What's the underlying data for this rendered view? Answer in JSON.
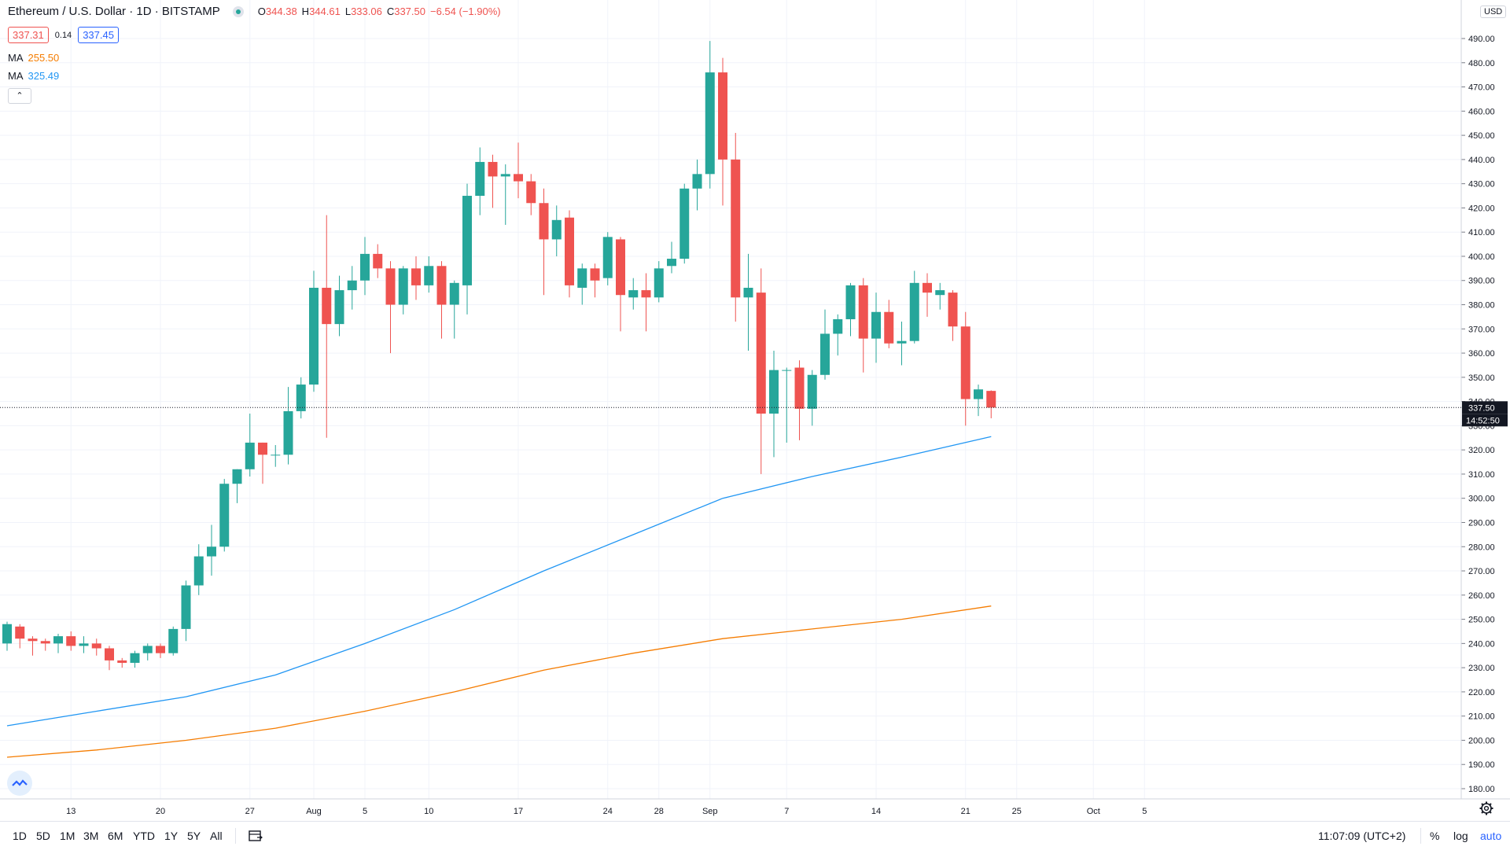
{
  "header": {
    "symbol": "Ethereum / U.S. Dollar · 1D · BITSTAMP",
    "o_label": "O",
    "o_value": "344.38",
    "h_label": "H",
    "h_value": "344.61",
    "l_label": "L",
    "l_value": "333.06",
    "c_label": "C",
    "c_value": "337.50",
    "change": "−6.54 (−1.90%)",
    "bid": "337.31",
    "spread": "0.14",
    "ask": "337.45",
    "ma1_label": "MA",
    "ma1_value": "255.50",
    "ma2_label": "MA",
    "ma2_value": "325.49",
    "collapse_icon": "chevron-up-icon"
  },
  "price_scale": {
    "currency_badge": "USD",
    "last_price_label": "337.50",
    "countdown_label": "14:52:50"
  },
  "bottom_toolbar": {
    "ranges": [
      "1D",
      "5D",
      "1M",
      "3M",
      "6M",
      "YTD",
      "1Y",
      "5Y",
      "All"
    ],
    "clock": "11:07:09 (UTC+2)",
    "percent": "%",
    "log": "log",
    "auto": "auto"
  },
  "colors": {
    "up": "#26a69a",
    "down": "#ef5350",
    "ma_fast": "#2196f3",
    "ma_slow": "#f57c00",
    "grid": "#f0f3fa"
  },
  "chart_data": {
    "type": "candlestick",
    "title": "Ethereum / U.S. Dollar · 1D · BITSTAMP",
    "ylim": [
      175,
      500
    ],
    "yticks": [
      180,
      190,
      200,
      210,
      220,
      230,
      240,
      250,
      260,
      270,
      280,
      290,
      300,
      310,
      320,
      330,
      340,
      350,
      360,
      370,
      380,
      390,
      400,
      410,
      420,
      430,
      440,
      450,
      460,
      470,
      480,
      490
    ],
    "ytick_labels": [
      "180.00",
      "190.00",
      "200.00",
      "210.00",
      "220.00",
      "230.00",
      "240.00",
      "250.00",
      "260.00",
      "270.00",
      "280.00",
      "290.00",
      "300.00",
      "310.00",
      "320.00",
      "330.00",
      "340.00",
      "350.00",
      "360.00",
      "370.00",
      "380.00",
      "390.00",
      "400.00",
      "410.00",
      "420.00",
      "430.00",
      "440.00",
      "450.00",
      "460.00",
      "470.00",
      "480.00",
      "490.00"
    ],
    "xtick_labels": [
      "13",
      "20",
      "27",
      "Aug",
      "5",
      "10",
      "17",
      "24",
      "28",
      "Sep",
      "7",
      "14",
      "21",
      "25",
      "Oct",
      "5"
    ],
    "xtick_days": [
      "2020-07-13",
      "2020-07-20",
      "2020-07-27",
      "2020-08-01",
      "2020-08-05",
      "2020-08-10",
      "2020-08-17",
      "2020-08-24",
      "2020-08-28",
      "2020-09-01",
      "2020-09-07",
      "2020-09-14",
      "2020-09-21",
      "2020-09-25",
      "2020-10-01",
      "2020-10-05"
    ],
    "xlim": [
      "2020-07-08",
      "2020-10-10"
    ],
    "candles": [
      {
        "date": "2020-07-08",
        "o": 240,
        "h": 249,
        "l": 237,
        "c": 248
      },
      {
        "date": "2020-07-09",
        "o": 247,
        "h": 248,
        "l": 238,
        "c": 242
      },
      {
        "date": "2020-07-10",
        "o": 242,
        "h": 243,
        "l": 235,
        "c": 241
      },
      {
        "date": "2020-07-11",
        "o": 241,
        "h": 242,
        "l": 237,
        "c": 240
      },
      {
        "date": "2020-07-12",
        "o": 240,
        "h": 244,
        "l": 236,
        "c": 243
      },
      {
        "date": "2020-07-13",
        "o": 243,
        "h": 245,
        "l": 237,
        "c": 239
      },
      {
        "date": "2020-07-14",
        "o": 239,
        "h": 243,
        "l": 236,
        "c": 240
      },
      {
        "date": "2020-07-15",
        "o": 240,
        "h": 242,
        "l": 235,
        "c": 238
      },
      {
        "date": "2020-07-16",
        "o": 238,
        "h": 239,
        "l": 229,
        "c": 233
      },
      {
        "date": "2020-07-17",
        "o": 233,
        "h": 234,
        "l": 230,
        "c": 232
      },
      {
        "date": "2020-07-18",
        "o": 232,
        "h": 237,
        "l": 230,
        "c": 236
      },
      {
        "date": "2020-07-19",
        "o": 236,
        "h": 240,
        "l": 233,
        "c": 239
      },
      {
        "date": "2020-07-20",
        "o": 239,
        "h": 240,
        "l": 234,
        "c": 236
      },
      {
        "date": "2020-07-21",
        "o": 236,
        "h": 247,
        "l": 235,
        "c": 246
      },
      {
        "date": "2020-07-22",
        "o": 246,
        "h": 266,
        "l": 241,
        "c": 264
      },
      {
        "date": "2020-07-23",
        "o": 264,
        "h": 281,
        "l": 260,
        "c": 276
      },
      {
        "date": "2020-07-24",
        "o": 276,
        "h": 289,
        "l": 268,
        "c": 280
      },
      {
        "date": "2020-07-25",
        "o": 280,
        "h": 308,
        "l": 278,
        "c": 306
      },
      {
        "date": "2020-07-26",
        "o": 306,
        "h": 312,
        "l": 298,
        "c": 312
      },
      {
        "date": "2020-07-27",
        "o": 312,
        "h": 335,
        "l": 309,
        "c": 323
      },
      {
        "date": "2020-07-28",
        "o": 323,
        "h": 323,
        "l": 306,
        "c": 318
      },
      {
        "date": "2020-07-29",
        "o": 318,
        "h": 322,
        "l": 313,
        "c": 318
      },
      {
        "date": "2020-07-30",
        "o": 318,
        "h": 346,
        "l": 314,
        "c": 336
      },
      {
        "date": "2020-07-31",
        "o": 336,
        "h": 350,
        "l": 333,
        "c": 347
      },
      {
        "date": "2020-08-01",
        "o": 347,
        "h": 394,
        "l": 344,
        "c": 387
      },
      {
        "date": "2020-08-02",
        "o": 387,
        "h": 417,
        "l": 325,
        "c": 372
      },
      {
        "date": "2020-08-03",
        "o": 372,
        "h": 392,
        "l": 367,
        "c": 386
      },
      {
        "date": "2020-08-04",
        "o": 386,
        "h": 396,
        "l": 378,
        "c": 390
      },
      {
        "date": "2020-08-05",
        "o": 390,
        "h": 408,
        "l": 384,
        "c": 401
      },
      {
        "date": "2020-08-06",
        "o": 401,
        "h": 405,
        "l": 391,
        "c": 395
      },
      {
        "date": "2020-08-07",
        "o": 395,
        "h": 398,
        "l": 360,
        "c": 380
      },
      {
        "date": "2020-08-08",
        "o": 380,
        "h": 396,
        "l": 376,
        "c": 395
      },
      {
        "date": "2020-08-09",
        "o": 395,
        "h": 400,
        "l": 382,
        "c": 388
      },
      {
        "date": "2020-08-10",
        "o": 388,
        "h": 400,
        "l": 385,
        "c": 396
      },
      {
        "date": "2020-08-11",
        "o": 396,
        "h": 398,
        "l": 366,
        "c": 380
      },
      {
        "date": "2020-08-12",
        "o": 380,
        "h": 390,
        "l": 366,
        "c": 389
      },
      {
        "date": "2020-08-13",
        "o": 388,
        "h": 430,
        "l": 376,
        "c": 425
      },
      {
        "date": "2020-08-14",
        "o": 425,
        "h": 445,
        "l": 417,
        "c": 439
      },
      {
        "date": "2020-08-15",
        "o": 439,
        "h": 442,
        "l": 420,
        "c": 433
      },
      {
        "date": "2020-08-16",
        "o": 433,
        "h": 438,
        "l": 413,
        "c": 434
      },
      {
        "date": "2020-08-17",
        "o": 434,
        "h": 447,
        "l": 424,
        "c": 431
      },
      {
        "date": "2020-08-18",
        "o": 431,
        "h": 434,
        "l": 417,
        "c": 422
      },
      {
        "date": "2020-08-19",
        "o": 422,
        "h": 428,
        "l": 384,
        "c": 407
      },
      {
        "date": "2020-08-20",
        "o": 407,
        "h": 421,
        "l": 400,
        "c": 415
      },
      {
        "date": "2020-08-21",
        "o": 416,
        "h": 419,
        "l": 383,
        "c": 388
      },
      {
        "date": "2020-08-22",
        "o": 387,
        "h": 397,
        "l": 380,
        "c": 395
      },
      {
        "date": "2020-08-23",
        "o": 395,
        "h": 397,
        "l": 383,
        "c": 390
      },
      {
        "date": "2020-08-24",
        "o": 391,
        "h": 410,
        "l": 388,
        "c": 408
      },
      {
        "date": "2020-08-25",
        "o": 407,
        "h": 408,
        "l": 369,
        "c": 384
      },
      {
        "date": "2020-08-26",
        "o": 383,
        "h": 391,
        "l": 378,
        "c": 386
      },
      {
        "date": "2020-08-27",
        "o": 386,
        "h": 393,
        "l": 369,
        "c": 383
      },
      {
        "date": "2020-08-28",
        "o": 383,
        "h": 398,
        "l": 381,
        "c": 395
      },
      {
        "date": "2020-08-29",
        "o": 396,
        "h": 406,
        "l": 393,
        "c": 399
      },
      {
        "date": "2020-08-30",
        "o": 399,
        "h": 430,
        "l": 397,
        "c": 428
      },
      {
        "date": "2020-08-31",
        "o": 428,
        "h": 440,
        "l": 419,
        "c": 434
      },
      {
        "date": "2020-09-01",
        "o": 434,
        "h": 489,
        "l": 428,
        "c": 476
      },
      {
        "date": "2020-09-02",
        "o": 476,
        "h": 482,
        "l": 421,
        "c": 440
      },
      {
        "date": "2020-09-03",
        "o": 440,
        "h": 451,
        "l": 373,
        "c": 383
      },
      {
        "date": "2020-09-04",
        "o": 383,
        "h": 401,
        "l": 361,
        "c": 387
      },
      {
        "date": "2020-09-05",
        "o": 385,
        "h": 395,
        "l": 310,
        "c": 335
      },
      {
        "date": "2020-09-06",
        "o": 335,
        "h": 361,
        "l": 317,
        "c": 353
      },
      {
        "date": "2020-09-07",
        "o": 353,
        "h": 354,
        "l": 323,
        "c": 353
      },
      {
        "date": "2020-09-08",
        "o": 354,
        "h": 357,
        "l": 324,
        "c": 337
      },
      {
        "date": "2020-09-09",
        "o": 337,
        "h": 353,
        "l": 330,
        "c": 351
      },
      {
        "date": "2020-09-10",
        "o": 351,
        "h": 378,
        "l": 349,
        "c": 368
      },
      {
        "date": "2020-09-11",
        "o": 368,
        "h": 376,
        "l": 359,
        "c": 374
      },
      {
        "date": "2020-09-12",
        "o": 374,
        "h": 389,
        "l": 367,
        "c": 388
      },
      {
        "date": "2020-09-13",
        "o": 388,
        "h": 391,
        "l": 352,
        "c": 366
      },
      {
        "date": "2020-09-14",
        "o": 366,
        "h": 385,
        "l": 356,
        "c": 377
      },
      {
        "date": "2020-09-15",
        "o": 377,
        "h": 382,
        "l": 362,
        "c": 364
      },
      {
        "date": "2020-09-16",
        "o": 364,
        "h": 373,
        "l": 355,
        "c": 365
      },
      {
        "date": "2020-09-17",
        "o": 365,
        "h": 394,
        "l": 364,
        "c": 389
      },
      {
        "date": "2020-09-18",
        "o": 389,
        "h": 393,
        "l": 375,
        "c": 385
      },
      {
        "date": "2020-09-19",
        "o": 384,
        "h": 389,
        "l": 378,
        "c": 386
      },
      {
        "date": "2020-09-20",
        "o": 385,
        "h": 386,
        "l": 365,
        "c": 371
      },
      {
        "date": "2020-09-21",
        "o": 371,
        "h": 377,
        "l": 330,
        "c": 341
      },
      {
        "date": "2020-09-22",
        "o": 341,
        "h": 347,
        "l": 334,
        "c": 345
      },
      {
        "date": "2020-09-23",
        "o": 344.38,
        "h": 344.61,
        "l": 333.06,
        "c": 337.5
      }
    ],
    "ma_slow": {
      "label": "MA",
      "value": 255.5,
      "points": [
        [
          "2020-07-08",
          193
        ],
        [
          "2020-07-15",
          196
        ],
        [
          "2020-07-22",
          200
        ],
        [
          "2020-07-29",
          205
        ],
        [
          "2020-08-05",
          212
        ],
        [
          "2020-08-12",
          220
        ],
        [
          "2020-08-19",
          229
        ],
        [
          "2020-08-26",
          236
        ],
        [
          "2020-09-02",
          242
        ],
        [
          "2020-09-09",
          246
        ],
        [
          "2020-09-16",
          250
        ],
        [
          "2020-09-23",
          255.5
        ]
      ]
    },
    "ma_fast": {
      "label": "MA",
      "value": 325.49,
      "points": [
        [
          "2020-07-08",
          206
        ],
        [
          "2020-07-15",
          212
        ],
        [
          "2020-07-22",
          218
        ],
        [
          "2020-07-29",
          227
        ],
        [
          "2020-08-05",
          240
        ],
        [
          "2020-08-12",
          254
        ],
        [
          "2020-08-19",
          270
        ],
        [
          "2020-08-26",
          285
        ],
        [
          "2020-09-02",
          300
        ],
        [
          "2020-09-09",
          309
        ],
        [
          "2020-09-16",
          317
        ],
        [
          "2020-09-23",
          325.49
        ]
      ]
    },
    "last_price": 337.5,
    "grid": true
  }
}
